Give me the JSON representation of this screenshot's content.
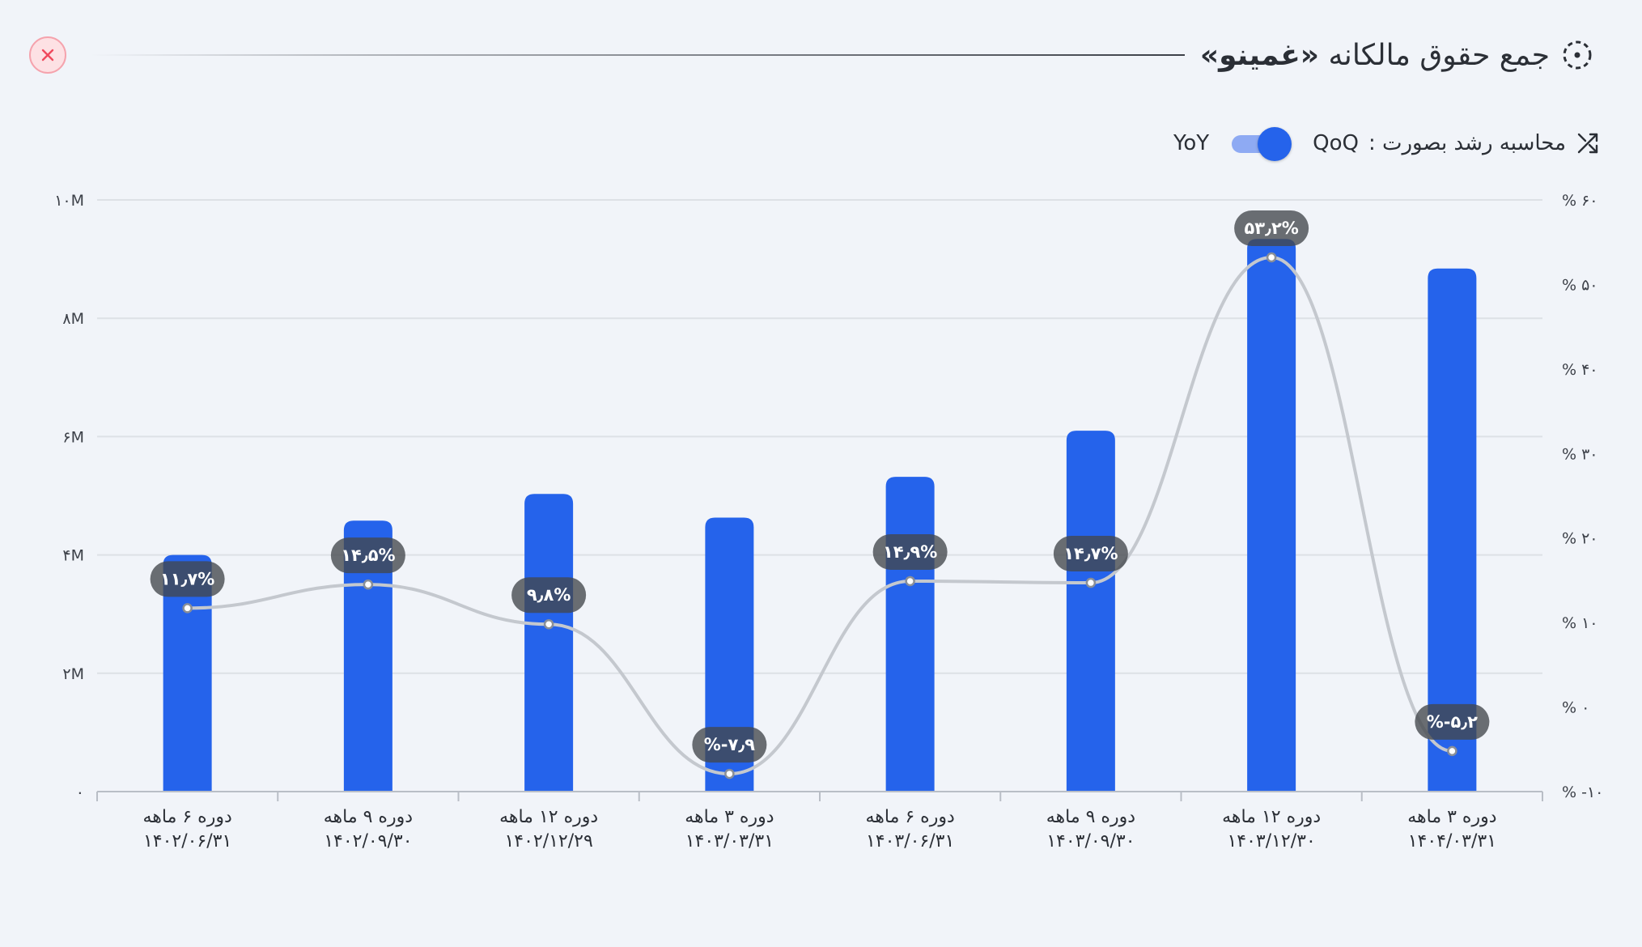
{
  "header": {
    "title_prefix": "جمع حقوق مالکانه",
    "title_company": "«غمینو»",
    "title_icon": "dotted-circle-icon",
    "close_icon": "close-x-icon"
  },
  "growth": {
    "label": "محاسبه رشد بصورت :",
    "option_left": "YoY",
    "option_right": "QoQ",
    "toggle_on": true,
    "icon": "shuffle-arrows-icon"
  },
  "colors": {
    "bar": "#2563eb",
    "line": "#c4c8ce",
    "badge": "rgba(66,70,76,0.78)",
    "grid": "#dde1e6",
    "close": "#ef4a5e"
  },
  "chart_data": {
    "type": "bar",
    "categories": [
      [
        "دوره ۶ ماهه",
        "۱۴۰۲/۰۶/۳۱"
      ],
      [
        "دوره ۹ ماهه",
        "۱۴۰۲/۰۹/۳۰"
      ],
      [
        "دوره ۱۲ ماهه",
        "۱۴۰۲/۱۲/۲۹"
      ],
      [
        "دوره ۳ ماهه",
        "۱۴۰۳/۰۳/۳۱"
      ],
      [
        "دوره ۶ ماهه",
        "۱۴۰۳/۰۶/۳۱"
      ],
      [
        "دوره ۹ ماهه",
        "۱۴۰۳/۰۹/۳۰"
      ],
      [
        "دوره ۱۲ ماهه",
        "۱۴۰۳/۱۲/۳۰"
      ],
      [
        "دوره ۳ ماهه",
        "۱۴۰۴/۰۳/۳۱"
      ]
    ],
    "series": [
      {
        "type": "bar",
        "axis": "left",
        "values": [
          4.0,
          4.58,
          5.03,
          4.63,
          5.32,
          6.1,
          9.34,
          8.84
        ]
      },
      {
        "type": "line",
        "axis": "right",
        "values": [
          11.7,
          14.5,
          9.8,
          -7.9,
          14.9,
          14.7,
          53.2,
          -5.2
        ],
        "labels": [
          "۱۱٫۷%",
          "۱۴٫۵%",
          "۹٫۸%",
          "%-۷٫۹",
          "۱۴٫۹%",
          "۱۴٫۷%",
          "۵۳٫۲%",
          "%-۵٫۲"
        ]
      }
    ],
    "ylim_left": [
      0,
      10
    ],
    "ylim_right": [
      -10,
      60
    ],
    "left_ticks": [
      "۰",
      "۲M",
      "۴M",
      "۶M",
      "۸M",
      "۱۰M"
    ],
    "right_ticks": [
      "% -۱۰",
      "% ۰",
      "% ۱۰",
      "% ۲۰",
      "% ۳۰",
      "% ۴۰",
      "% ۵۰",
      "% ۶۰"
    ],
    "grid": true
  }
}
